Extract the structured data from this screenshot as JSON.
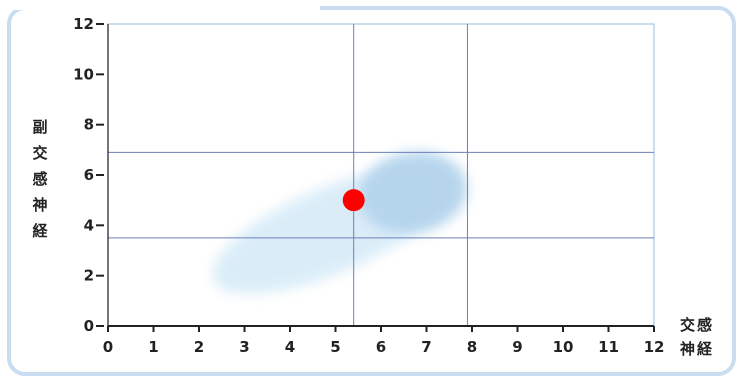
{
  "chart_data": {
    "type": "scatter",
    "xlabel": "交感神経",
    "ylabel": "副交感神経",
    "xlim": [
      0,
      12
    ],
    "ylim": [
      0,
      12
    ],
    "x_ticks": [
      "0",
      "1",
      "2",
      "3",
      "4",
      "5",
      "6",
      "7",
      "8",
      "9",
      "10",
      "11",
      "12"
    ],
    "y_ticks": [
      "0",
      "2",
      "4",
      "6",
      "8",
      "10",
      "12"
    ],
    "reference_lines": {
      "vertical": [
        5.4,
        7.9
      ],
      "horizontal": [
        3.5,
        6.9
      ]
    },
    "regions": [
      {
        "cx": 4.9,
        "cy": 3.8,
        "rx": 2.8,
        "ry": 1.7,
        "rotation_deg": -23,
        "color": "#d9ecf8"
      },
      {
        "cx": 6.7,
        "cy": 5.3,
        "rx": 1.2,
        "ry": 1.6,
        "rotation_deg": -10,
        "color": "#b4d4ec"
      }
    ],
    "points": [
      {
        "x": 5.4,
        "y": 5.0,
        "color": "#ff0000"
      }
    ],
    "grid": false,
    "colors": {
      "frame_border": "#c9ddf0",
      "plot_border": "#a8c7e4",
      "reference_line": "#6d7fb8",
      "axis": "#222222",
      "point": "#ff0000"
    }
  }
}
